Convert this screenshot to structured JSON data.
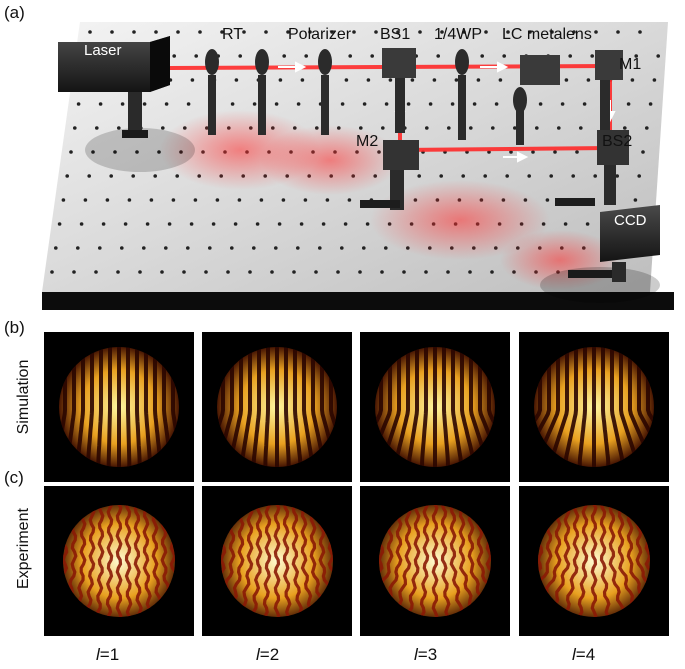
{
  "panels": {
    "a": "(a)",
    "b": "(b)",
    "c": "(c)"
  },
  "setup_labels": {
    "laser": "Laser",
    "rt": "RT",
    "polarizer": "Polarizer",
    "bs1": "BS1",
    "qwp": "1/4WP",
    "lc_metalens": "LC metalens",
    "m1": "M1",
    "m2": "M2",
    "bs2": "BS2",
    "ccd": "CCD"
  },
  "rows": {
    "simulation": "Simulation",
    "experiment": "Experiment"
  },
  "topological_charges": [
    {
      "symbol": "l",
      "value": "=1"
    },
    {
      "symbol": "l",
      "value": "=2"
    },
    {
      "symbol": "l",
      "value": "=3"
    },
    {
      "symbol": "l",
      "value": "=4"
    }
  ],
  "colors": {
    "beam": "#ff2a2a",
    "fringe_bright": "#fff7a0",
    "fringe_mid": "#e8a020",
    "fringe_dark": "#3a0a00",
    "background": "#000000"
  }
}
